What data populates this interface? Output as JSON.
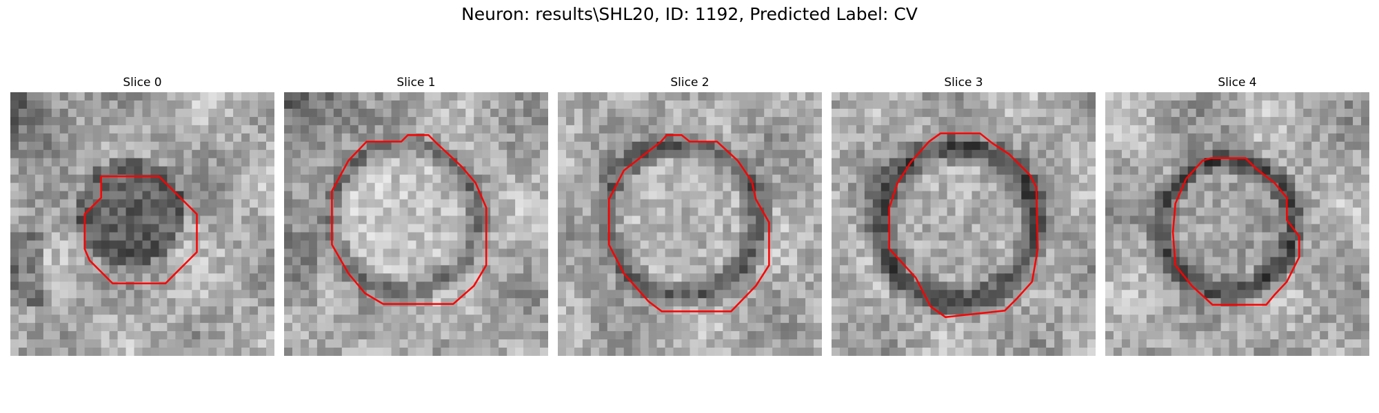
{
  "figure": {
    "title": "Neuron: results\\SHL20, ID: 1192, Predicted Label: CV"
  },
  "panels": [
    {
      "title": "Slice 0",
      "contour_color": "#ff0000"
    },
    {
      "title": "Slice 1",
      "contour_color": "#ff0000"
    },
    {
      "title": "Slice 2",
      "contour_color": "#ff0000"
    },
    {
      "title": "Slice 3",
      "contour_color": "#ff0000"
    },
    {
      "title": "Slice 4",
      "contour_color": "#ff0000"
    }
  ]
}
